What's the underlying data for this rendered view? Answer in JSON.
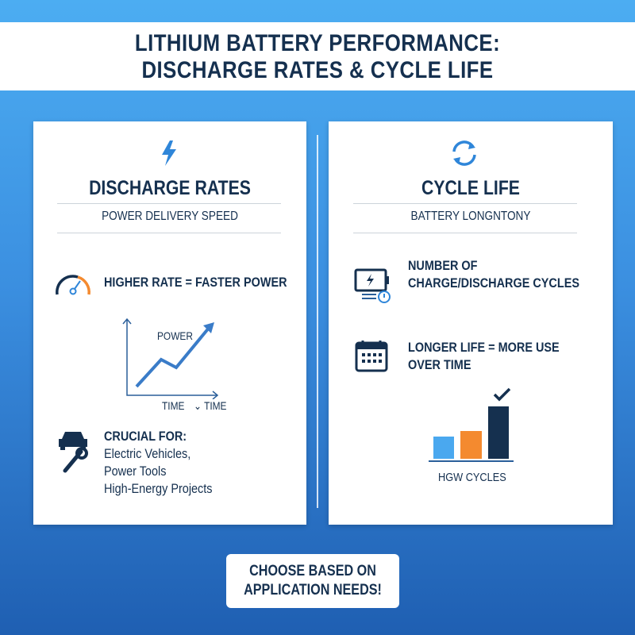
{
  "title": {
    "line1": "LITHIUM BATTERY PERFORMANCE:",
    "line2": "DISCHARGE RATES & CYCLE LIFE"
  },
  "left": {
    "icon": "lightning-bolt-icon",
    "heading": "DISCHARGE RATES",
    "subtitle": "POWER DELIVERY SPEED",
    "point1": {
      "icon": "speedometer-icon",
      "text": "HIGHER RATE = FASTER POWER"
    },
    "graph": {
      "y_label": "POWER",
      "x_label": "TIME",
      "x_label2": "TIME"
    },
    "point2": {
      "icon": "car-wrench-icon",
      "heading": "CRUCIAL FOR:",
      "items": [
        "Electric Vehicles,",
        "Power Tools",
        "High-Energy Projects"
      ]
    }
  },
  "right": {
    "icon": "cycle-arrows-icon",
    "heading": "CYCLE LIFE",
    "subtitle": "BATTERY LONGNTONY",
    "point1": {
      "icon": "battery-clock-icon",
      "line1": "NUMBER OF",
      "line2": "CHARGE/DISCHARGE CYCLES"
    },
    "point2": {
      "icon": "calendar-icon",
      "line1": "LONGER LIFE = MORE USE",
      "line2": "OVER TIME"
    },
    "bars": {
      "label": "HGW CYCLES",
      "colors": [
        "#4aa8ef",
        "#f48a2f",
        "#15304f"
      ]
    }
  },
  "cta": {
    "line1": "CHOOSE BASED ON",
    "line2": "APPLICATION NEEDS!"
  }
}
